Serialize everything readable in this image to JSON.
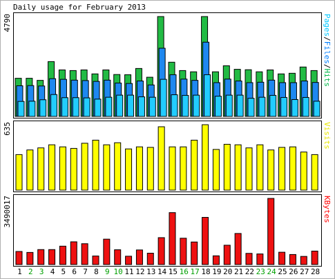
{
  "chart_data": {
    "type": "bar",
    "title": "Daily usage for February 2013",
    "categories": [
      "1",
      "2",
      "3",
      "4",
      "5",
      "6",
      "7",
      "8",
      "9",
      "10",
      "11",
      "12",
      "13",
      "14",
      "15",
      "16",
      "17",
      "18",
      "19",
      "20",
      "21",
      "22",
      "23",
      "24",
      "25",
      "26",
      "27",
      "28"
    ],
    "weekend_days": [
      "2",
      "3",
      "9",
      "10",
      "16",
      "17",
      "23",
      "24"
    ],
    "panels": [
      {
        "name": "hits-files-pages",
        "ymax_label": "4790",
        "ymax": 4790,
        "legend": [
          {
            "text": "Pages",
            "color": "#00c8ff"
          },
          {
            "text": "/",
            "color": "#000000"
          },
          {
            "text": "Files",
            "color": "#0080ff"
          },
          {
            "text": "/",
            "color": "#000000"
          },
          {
            "text": "Hits",
            "color": "#00b848"
          }
        ],
        "series": [
          {
            "name": "Hits",
            "color": "#22bb44",
            "values": [
              1830,
              1830,
              1730,
              2630,
              2230,
              2200,
              2230,
              2040,
              2230,
              2010,
              2000,
              2300,
              1880,
              4790,
              2600,
              2200,
              2140,
              4790,
              2140,
              2430,
              2260,
              2240,
              2140,
              2230,
              2040,
              2070,
              2370,
              2200
            ]
          },
          {
            "name": "Files",
            "color": "#1e88f0",
            "values": [
              1470,
              1480,
              1460,
              1810,
              1780,
              1740,
              1720,
              1680,
              1740,
              1600,
              1580,
              1700,
              1510,
              3270,
              2000,
              1790,
              1730,
              3560,
              1620,
              1790,
              1700,
              1620,
              1640,
              1740,
              1620,
              1620,
              1700,
              1630
            ]
          },
          {
            "name": "Pages",
            "color": "#22ccff",
            "values": [
              720,
              730,
              800,
              1050,
              900,
              900,
              890,
              830,
              920,
              1020,
              1020,
              940,
              920,
              1780,
              1040,
              1010,
              1020,
              2000,
              970,
              1020,
              1020,
              870,
              920,
              1010,
              910,
              810,
              910,
              730
            ]
          }
        ]
      },
      {
        "name": "visits",
        "ymax_label": "635",
        "ymax": 635,
        "legend": [
          {
            "text": "Visits",
            "color": "#e8e800"
          }
        ],
        "series": [
          {
            "name": "Visits",
            "color": "#ffff00",
            "values": [
              345,
              390,
              410,
              440,
              420,
              405,
              455,
              485,
              440,
              460,
              400,
              420,
              415,
              615,
              420,
              420,
              485,
              635,
              395,
              445,
              440,
              410,
              440,
              390,
              415,
              420,
              370,
              345
            ]
          }
        ]
      },
      {
        "name": "kbytes",
        "ymax_label": "3490017",
        "ymax": 3490017,
        "legend": [
          {
            "text": "KBytes",
            "color": "#ff0000"
          }
        ],
        "series": [
          {
            "name": "KBytes",
            "color": "#ee1111",
            "values": [
              690000,
              640000,
              790000,
              790000,
              970000,
              1200000,
              1100000,
              450000,
              1340000,
              780000,
              440000,
              770000,
              600000,
              1420000,
              2740000,
              1390000,
              1190000,
              2490000,
              460000,
              1020000,
              1640000,
              590000,
              560000,
              3490017,
              650000,
              530000,
              430000,
              710000
            ]
          }
        ]
      }
    ]
  }
}
